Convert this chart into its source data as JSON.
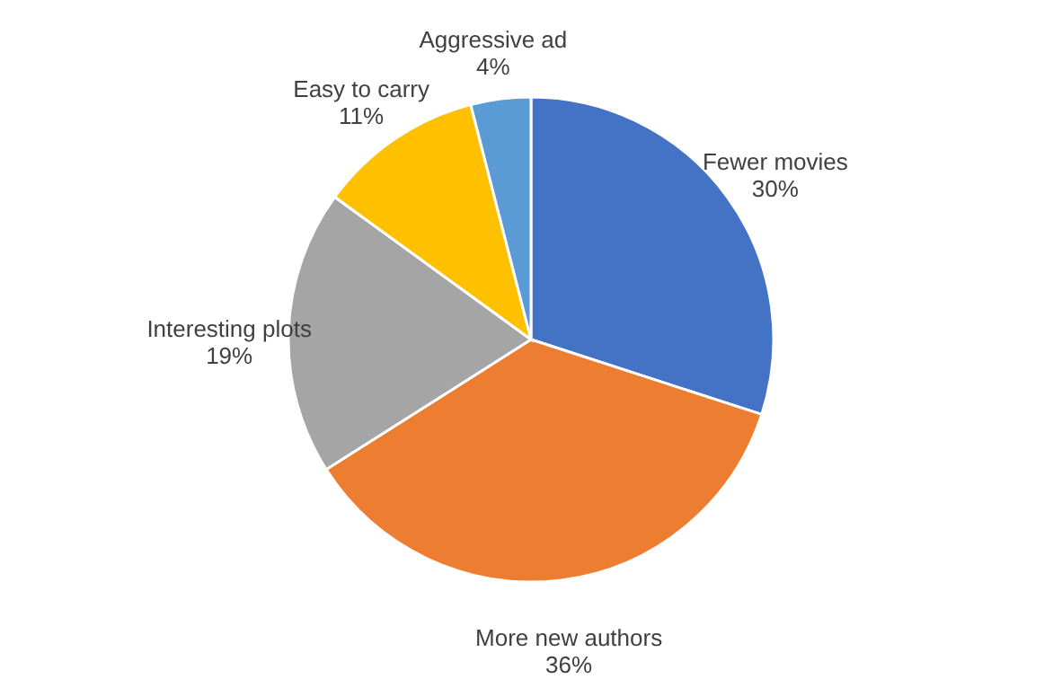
{
  "chart_data": {
    "type": "pie",
    "categories": [
      "Fewer movies",
      "More new authors",
      "Interesting plots",
      "Easy to carry",
      "Aggressive ad"
    ],
    "values": [
      30,
      36,
      19,
      11,
      4
    ],
    "colors": [
      "#4472c4",
      "#ed7d31",
      "#a5a5a5",
      "#ffc000",
      "#5b9bd5"
    ],
    "value_labels": [
      "30%",
      "36%",
      "19%",
      "11%",
      "4%"
    ],
    "legend": false
  }
}
